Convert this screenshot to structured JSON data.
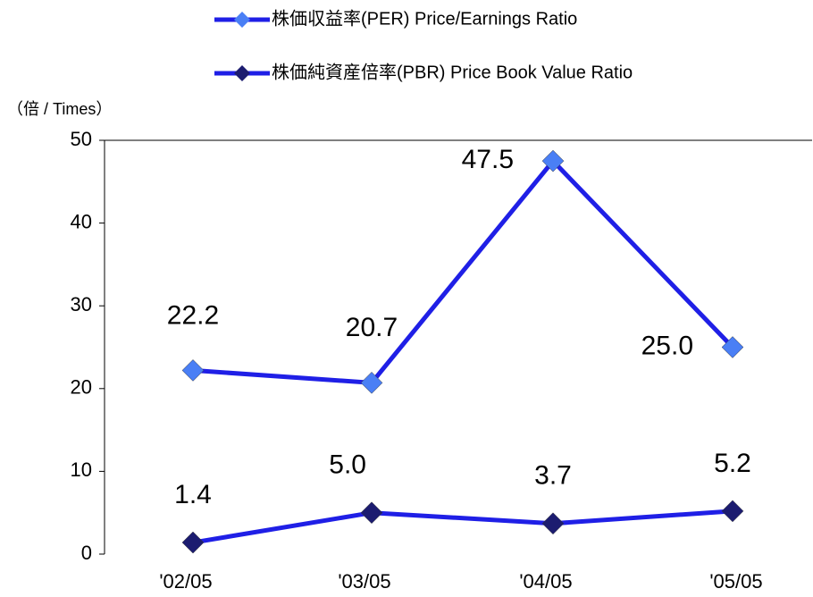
{
  "chart_data": {
    "type": "line",
    "y_axis_label": "（倍 / Times）",
    "categories": [
      "'02/05",
      "'03/05",
      "'04/05",
      "'05/05"
    ],
    "series": [
      {
        "name": "株価収益率(PER) Price/Earnings Ratio",
        "color": "#1f1fe6",
        "marker_color": "#4a7ff5",
        "values": [
          22.2,
          20.7,
          47.5,
          25.0
        ],
        "value_labels": [
          "22.2",
          "20.7",
          "47.5",
          "25.0"
        ]
      },
      {
        "name": "株価純資産倍率(PBR) Price Book Value Ratio",
        "color": "#1f1fe6",
        "marker_color": "#1c1c70",
        "values": [
          1.4,
          5.0,
          3.7,
          5.2
        ],
        "value_labels": [
          "1.4",
          "5.0",
          "3.7",
          "5.2"
        ]
      }
    ],
    "ylim": [
      0,
      50
    ],
    "yticks": [
      0,
      10,
      20,
      30,
      40,
      50
    ],
    "grid": false
  }
}
